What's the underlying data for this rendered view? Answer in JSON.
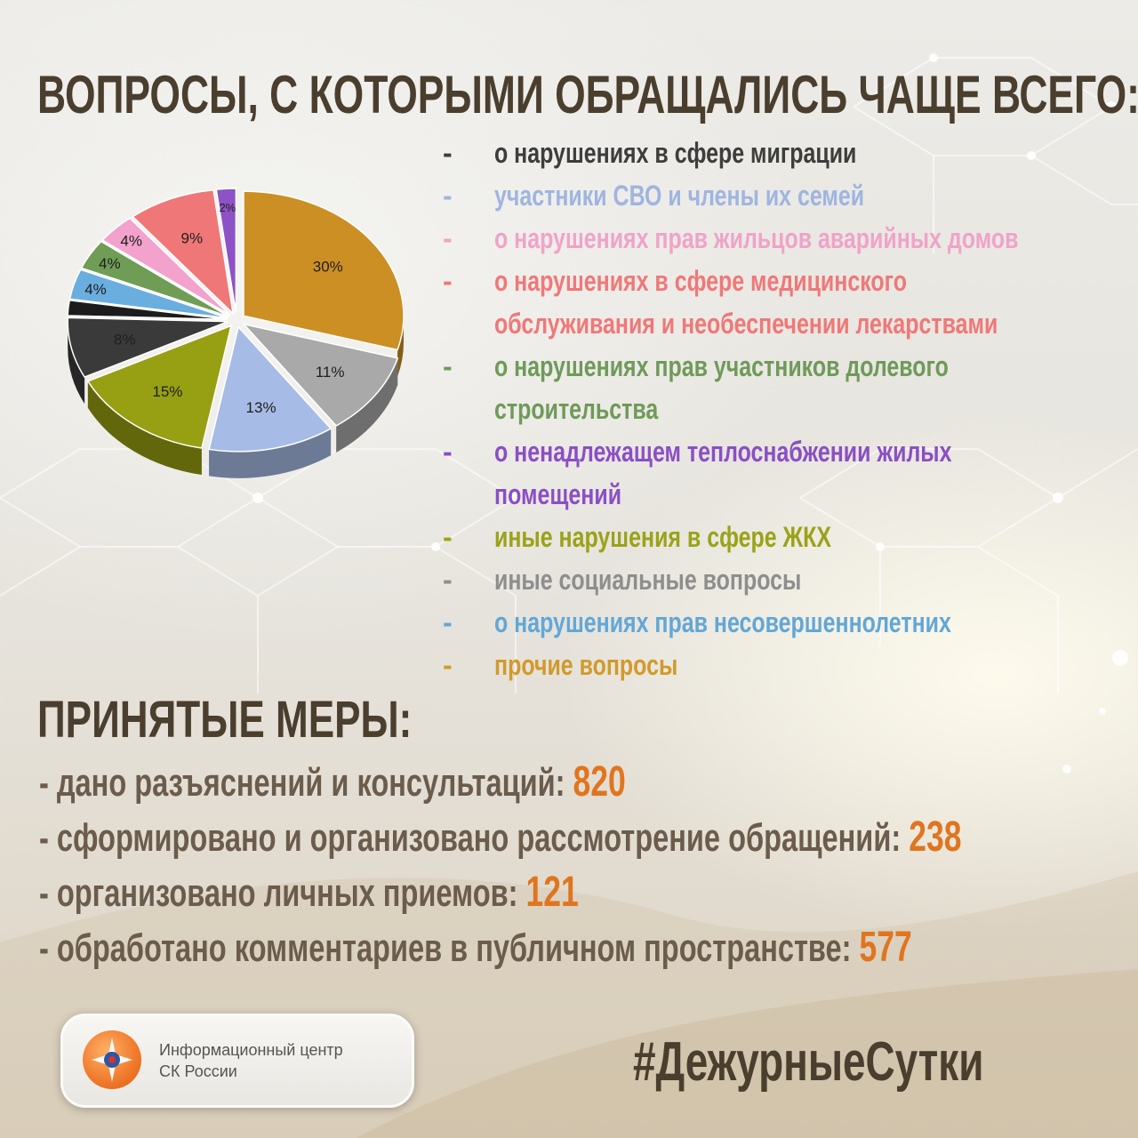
{
  "title": "ВОПРОСЫ, С КОТОРЫМИ ОБРАЩАЛИСЬ ЧАЩЕ ВСЕГО:",
  "legend_marker": "-",
  "legend": [
    {
      "lines": [
        "о нарушениях в сфере миграции"
      ],
      "color": "#3d3d3d"
    },
    {
      "lines": [
        "участники СВО и члены их семей"
      ],
      "color": "#9fb5e0"
    },
    {
      "lines": [
        "о нарушениях прав жильцов аварийных домов"
      ],
      "color": "#f0a3c8"
    },
    {
      "lines": [
        "о нарушениях в сфере медицинского",
        "обслуживания и необеспечении лекарствами"
      ],
      "color": "#f07878"
    },
    {
      "lines": [
        "о нарушениях прав участников долевого",
        "строительства"
      ],
      "color": "#6f9a5a"
    },
    {
      "lines": [
        "о ненадлежащем теплоснабжении жилых",
        "помещений"
      ],
      "color": "#8a4fc4"
    },
    {
      "lines": [
        "иные нарушения в сфере ЖКХ"
      ],
      "color": "#9aa318"
    },
    {
      "lines": [
        "иные социальные вопросы"
      ],
      "color": "#8e8e8e"
    },
    {
      "lines": [
        "о нарушениях прав несовершеннолетних"
      ],
      "color": "#62a7d6"
    },
    {
      "lines": [
        "прочие вопросы"
      ],
      "color": "#d19a2c"
    }
  ],
  "chart_data": {
    "type": "pie",
    "slices": [
      {
        "label": "30%",
        "value": 30,
        "color": "#cc8f24"
      },
      {
        "label": "11%",
        "value": 11,
        "color": "#a9a9a9"
      },
      {
        "label": "13%",
        "value": 13,
        "color": "#a6bce6"
      },
      {
        "label": "15%",
        "value": 15,
        "color": "#979f12"
      },
      {
        "label": "8%",
        "value": 8,
        "color": "#3a3a3a"
      },
      {
        "label": "",
        "value": 2,
        "color": "#1c1c1c"
      },
      {
        "label": "4%",
        "value": 4,
        "color": "#6aaee0"
      },
      {
        "label": "4%",
        "value": 4,
        "color": "#6f9d55"
      },
      {
        "label": "4%",
        "value": 4,
        "color": "#f2a2cd"
      },
      {
        "label": "9%",
        "value": 9,
        "color": "#f07777"
      },
      {
        "label": "2%",
        "value": 2,
        "color": "#8c52c6"
      }
    ]
  },
  "measures_title": "ПРИНЯТЫЕ МЕРЫ:",
  "measures": [
    {
      "text": "- дано разъяснений и консультаций: ",
      "value": "820"
    },
    {
      "text": "- сформировано и организовано рассмотрение обращений: ",
      "value": "238"
    },
    {
      "text": "- организовано личных приемов: ",
      "value": "121"
    },
    {
      "text": "- обработано комментариев в публичном пространстве: ",
      "value": "577"
    }
  ],
  "logo": {
    "line1": "Информационный центр",
    "line2": "СК России"
  },
  "hashtag": "#ДежурныеСутки"
}
